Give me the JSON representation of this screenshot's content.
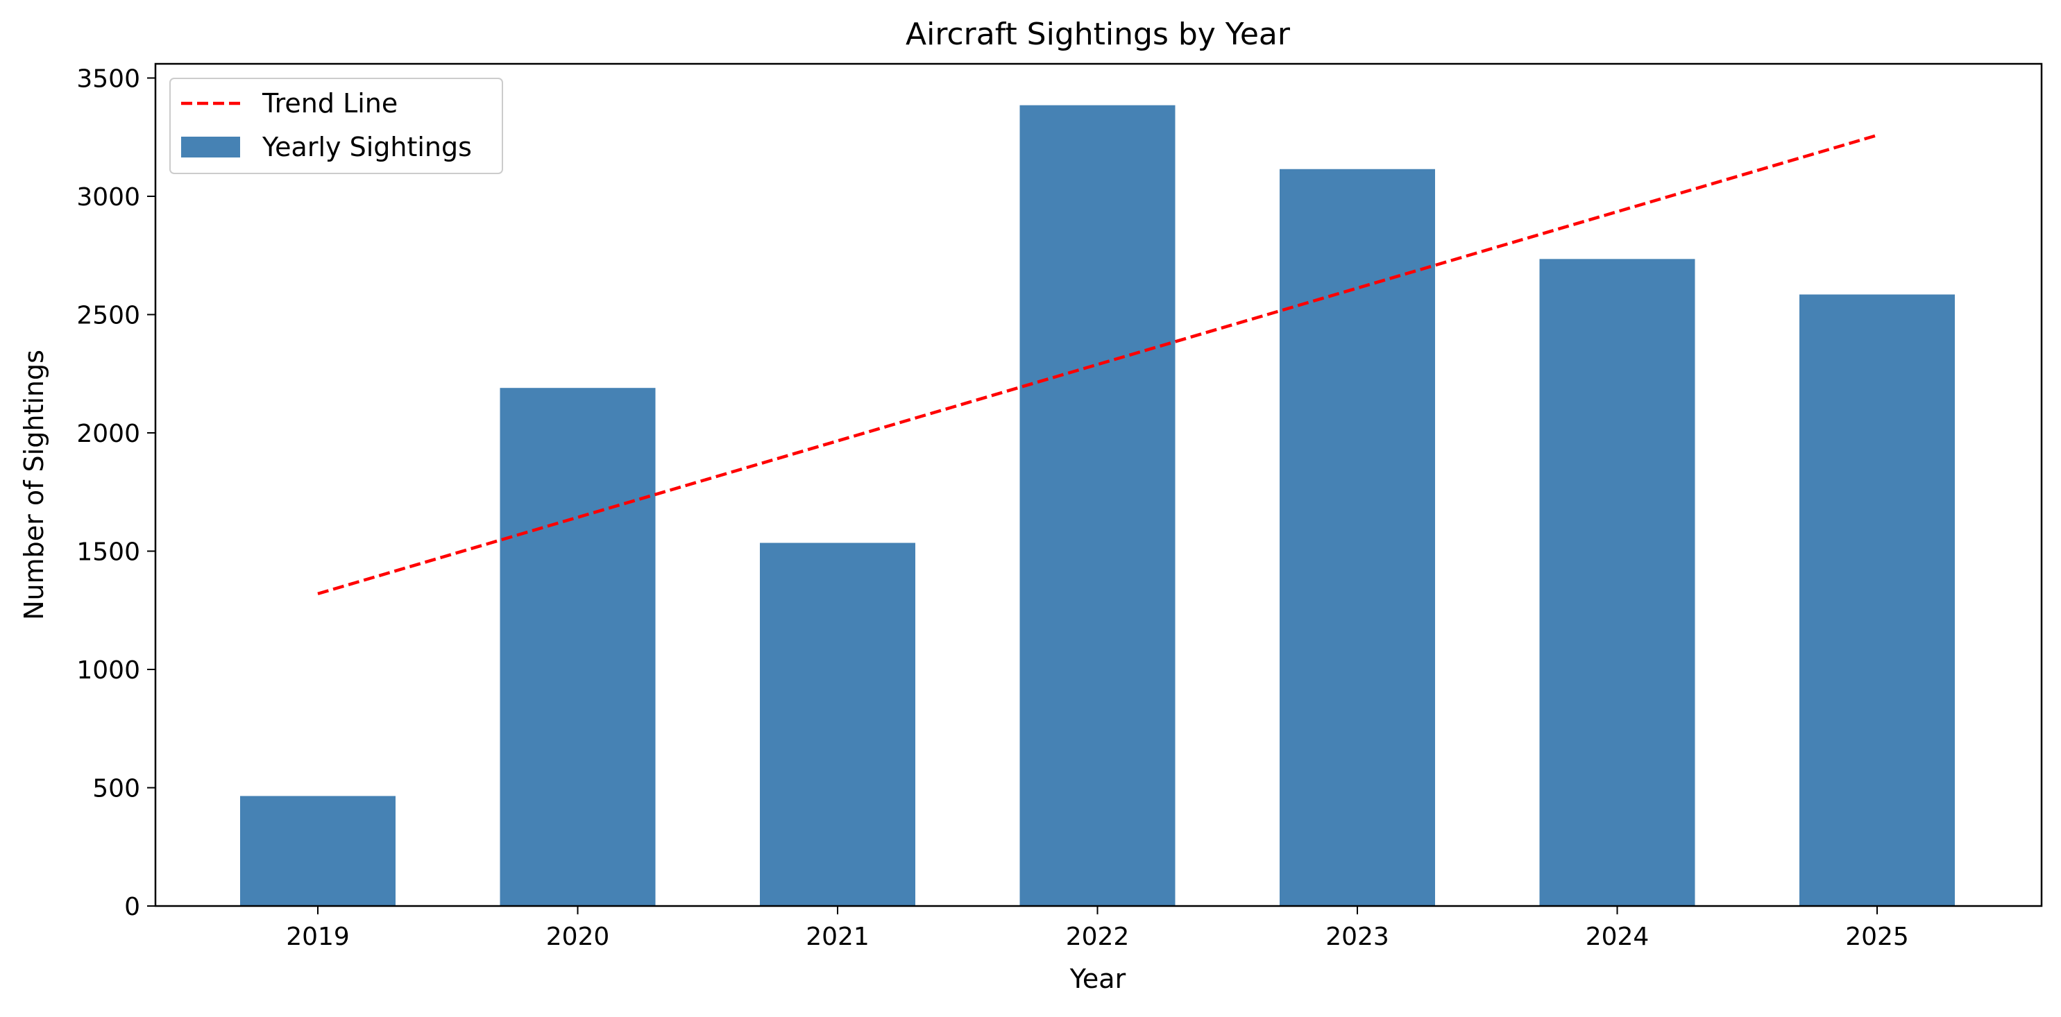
{
  "chart_data": {
    "type": "bar",
    "title": "Aircraft Sightings by Year",
    "xlabel": "Year",
    "ylabel": "Number of Sightings",
    "categories": [
      "2019",
      "2020",
      "2021",
      "2022",
      "2023",
      "2024",
      "2025"
    ],
    "series": [
      {
        "name": "Yearly Sightings",
        "type": "bar",
        "color": "#4682b4",
        "values": [
          465,
          2190,
          1535,
          3385,
          3115,
          2735,
          2585
        ]
      },
      {
        "name": "Trend Line",
        "type": "line",
        "style": "dashed",
        "color": "#ff0000",
        "values": [
          1320,
          1643,
          1966,
          2289,
          2612,
          2935,
          3258
        ]
      }
    ],
    "ylim": [
      0,
      3560
    ],
    "yticks": [
      "0",
      "500",
      "1000",
      "1500",
      "2000",
      "2500",
      "3000",
      "3500"
    ],
    "grid": false,
    "legend": {
      "placement": "top-left",
      "entries": [
        "Trend Line",
        "Yearly Sightings"
      ]
    }
  }
}
